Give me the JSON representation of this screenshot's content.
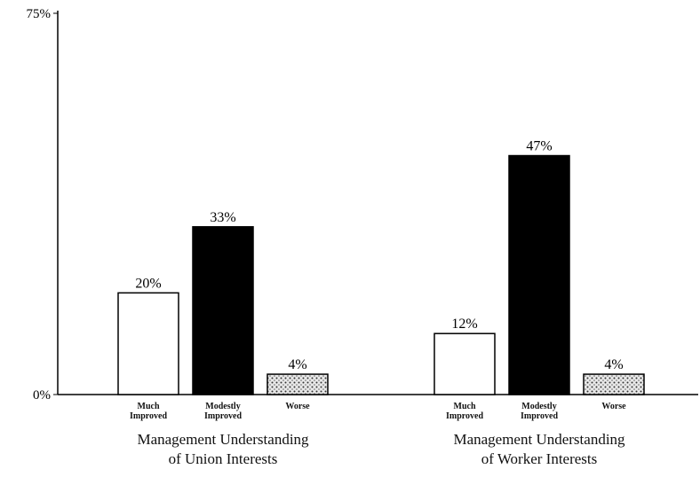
{
  "chart_data": {
    "type": "bar",
    "categories": [
      [
        "Management Understanding",
        "of Union Interests"
      ],
      [
        "Management Understanding",
        "of Worker Interests"
      ]
    ],
    "series": [
      {
        "name": "Much Improved",
        "color": "#ffffff",
        "values": [
          20,
          12
        ],
        "value_labels": [
          "20%",
          "12%"
        ]
      },
      {
        "name": "Modestly Improved",
        "color": "#000000",
        "values": [
          33,
          47
        ],
        "value_labels": [
          "33%",
          "47%"
        ]
      },
      {
        "name": "Worse",
        "color": "#d8d8d8",
        "pattern": "dots",
        "values": [
          4,
          4
        ],
        "value_labels": [
          "4%",
          "4%"
        ]
      }
    ],
    "ylim": [
      0,
      75
    ],
    "yticks": [
      {
        "value": 0,
        "label": "0%"
      },
      {
        "value": 75,
        "label": "75%"
      }
    ]
  }
}
